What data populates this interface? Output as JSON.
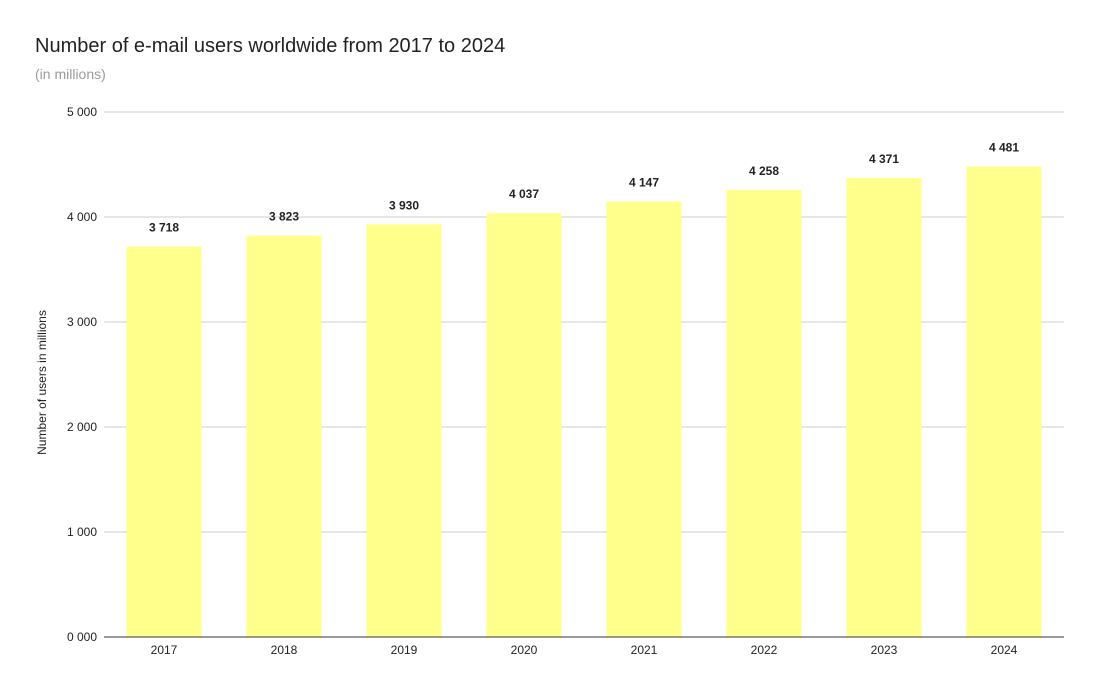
{
  "chart_data": {
    "type": "bar",
    "title": "Number of e-mail users worldwide from 2017 to 2024",
    "subtitle": "(in millions)",
    "xlabel": "",
    "ylabel": "Number of users in millions",
    "categories": [
      "2017",
      "2018",
      "2019",
      "2020",
      "2021",
      "2022",
      "2023",
      "2024"
    ],
    "values": [
      3718,
      3823,
      3930,
      4037,
      4147,
      4258,
      4371,
      4481
    ],
    "data_labels": [
      "3 718",
      "3 823",
      "3 930",
      "4 037",
      "4 147",
      "4 258",
      "4 371",
      "4 481"
    ],
    "ylim": [
      0,
      5000
    ],
    "yticks": [
      0,
      1000,
      2000,
      3000,
      4000,
      5000
    ],
    "ytick_labels": [
      "0 000",
      "1 000",
      "2 000",
      "3 000",
      "4 000",
      "5 000"
    ],
    "grid": true,
    "legend": "none",
    "colors": {
      "bar": "#ffff8c",
      "grid": "#cccccc",
      "axis": "#333333"
    }
  }
}
